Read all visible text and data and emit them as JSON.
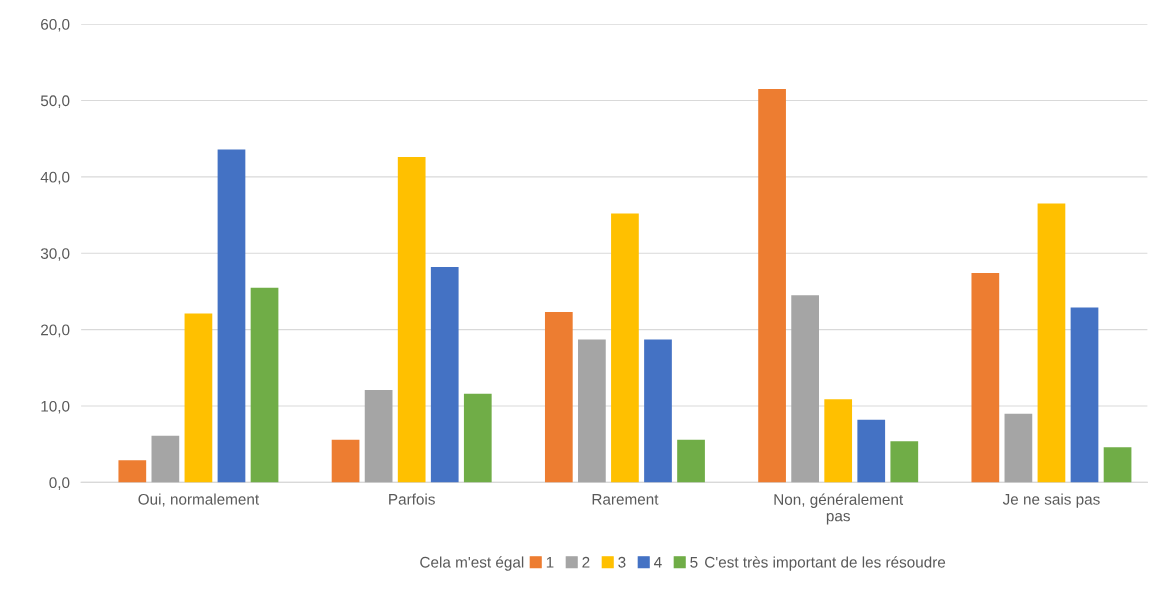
{
  "chart_data": {
    "type": "bar",
    "categories": [
      "Oui, normalement",
      "Parfois",
      "Rarement",
      "Non, généralement\npas",
      "Je ne sais pas"
    ],
    "series": [
      {
        "name": "1",
        "color": "#ed7d31",
        "values": [
          2.9,
          5.6,
          22.3,
          51.5,
          27.4
        ]
      },
      {
        "name": "2",
        "color": "#a5a5a5",
        "values": [
          6.1,
          12.1,
          18.7,
          24.5,
          9.0
        ]
      },
      {
        "name": "3",
        "color": "#ffc000",
        "values": [
          22.1,
          42.6,
          35.2,
          10.9,
          36.5
        ]
      },
      {
        "name": "4",
        "color": "#4472c4",
        "values": [
          43.6,
          28.2,
          18.7,
          8.2,
          22.9
        ]
      },
      {
        "name": "5",
        "color": "#70ad47",
        "values": [
          25.5,
          11.6,
          5.6,
          5.4,
          4.6
        ]
      }
    ],
    "legend_title": "Cela m'est égal",
    "annotations": [
      "C'est très important de les résoudre"
    ],
    "ylim": [
      0,
      60
    ],
    "yticks": [
      {
        "value": 0,
        "label": "0,0"
      },
      {
        "value": 10,
        "label": "10,0"
      },
      {
        "value": 20,
        "label": "20,0"
      },
      {
        "value": 30,
        "label": "30,0"
      },
      {
        "value": 40,
        "label": "40,0"
      },
      {
        "value": 50,
        "label": "50,0"
      },
      {
        "value": 60,
        "label": "60,0"
      }
    ],
    "grid": "y",
    "legend": "bottom"
  }
}
